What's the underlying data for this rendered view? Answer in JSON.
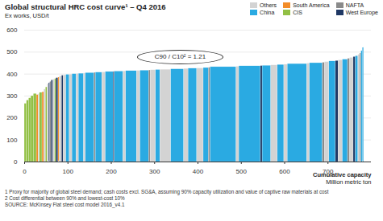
{
  "chart_data": {
    "type": "bar",
    "title": "Global structural HRC cost curve¹ – Q4 2016",
    "subtitle": "Ex works, USD/t",
    "annotation": "C90 / C10² = 1.21",
    "xlabel": "Cumulative capacity\nMillion metric ton",
    "footnotes": [
      "1 Proxy for majority of global steel demand; cash costs excl. SG&A, assuming 90% capacity utilization and value of captive raw materials at cost",
      "2 Cost differential between 90% and lowest-cost 10%",
      "SOURCE: McKinsey Flat steel cost model 2016_v4.1"
    ],
    "series": [
      {
        "name": "Others",
        "color": "#d3d3d3"
      },
      {
        "name": "South America",
        "color": "#f28c28"
      },
      {
        "name": "NAFTA",
        "color": "#8a8a8a"
      },
      {
        "name": "China",
        "color": "#2aaae2"
      },
      {
        "name": "CIS",
        "color": "#92c045"
      },
      {
        "name": "West Europe",
        "color": "#1f3864"
      }
    ],
    "region": [
      "CIS",
      "CIS",
      "CIS",
      "CIS",
      "CIS",
      "South America",
      "Others",
      "CIS",
      "South America",
      "Others",
      "CIS",
      "Others",
      "West Europe",
      "NAFTA",
      "West Europe",
      "Others",
      "CIS",
      "West Europe",
      "South America",
      "Others",
      "West Europe",
      "Others",
      "China",
      "Others",
      "China",
      "Others",
      "China",
      "Others",
      "China",
      "NAFTA",
      "China",
      "Others",
      "China",
      "West Europe",
      "China",
      "Others",
      "China",
      "Others",
      "China",
      "NAFTA",
      "Others",
      "China",
      "Others",
      "China",
      "Others",
      "China",
      "Others",
      "China",
      "NAFTA",
      "China",
      "Others",
      "China",
      "West Europe",
      "China",
      "Others",
      "China",
      "Others",
      "China",
      "Others",
      "China",
      "NAFTA",
      "Others",
      "China",
      "West Europe",
      "Others",
      "China",
      "NAFTA",
      "Others",
      "West Europe",
      "China",
      "Others",
      "NAFTA",
      "China",
      "China"
    ],
    "widths": [
      5,
      5,
      5,
      6,
      7,
      4,
      3,
      6,
      4,
      4,
      4,
      3,
      3,
      3,
      4,
      4,
      3,
      5,
      3,
      5,
      4,
      6,
      8,
      6,
      10,
      5,
      12,
      4,
      20,
      3,
      15,
      8,
      18,
      3,
      20,
      6,
      25,
      8,
      20,
      4,
      12,
      10,
      25,
      30,
      10,
      20,
      15,
      12,
      4,
      60,
      6,
      50,
      4,
      20,
      15,
      15,
      8,
      45,
      6,
      30,
      5,
      10,
      15,
      6,
      10,
      12,
      5,
      8,
      5,
      6,
      4,
      3,
      3,
      3
    ],
    "values": [
      265,
      280,
      290,
      300,
      310,
      305,
      310,
      315,
      318,
      330,
      340,
      355,
      360,
      365,
      372,
      375,
      378,
      382,
      385,
      390,
      393,
      395,
      397,
      398,
      400,
      401,
      402,
      403,
      405,
      406,
      407,
      408,
      410,
      411,
      412,
      413,
      414,
      415,
      416,
      417,
      418,
      419,
      420,
      422,
      424,
      425,
      426,
      428,
      429,
      432,
      434,
      436,
      437,
      438,
      440,
      442,
      443,
      446,
      448,
      450,
      452,
      455,
      458,
      460,
      463,
      466,
      470,
      474,
      478,
      482,
      488,
      495,
      505,
      520
    ],
    "xlim": [
      0,
      800
    ],
    "xticks": [
      0,
      100,
      200,
      300,
      400,
      500,
      600,
      700
    ],
    "ylim": [
      0,
      600
    ],
    "yticks": [
      0,
      100,
      200,
      300,
      400,
      500,
      600
    ],
    "grid": true,
    "legend": "top-right"
  }
}
